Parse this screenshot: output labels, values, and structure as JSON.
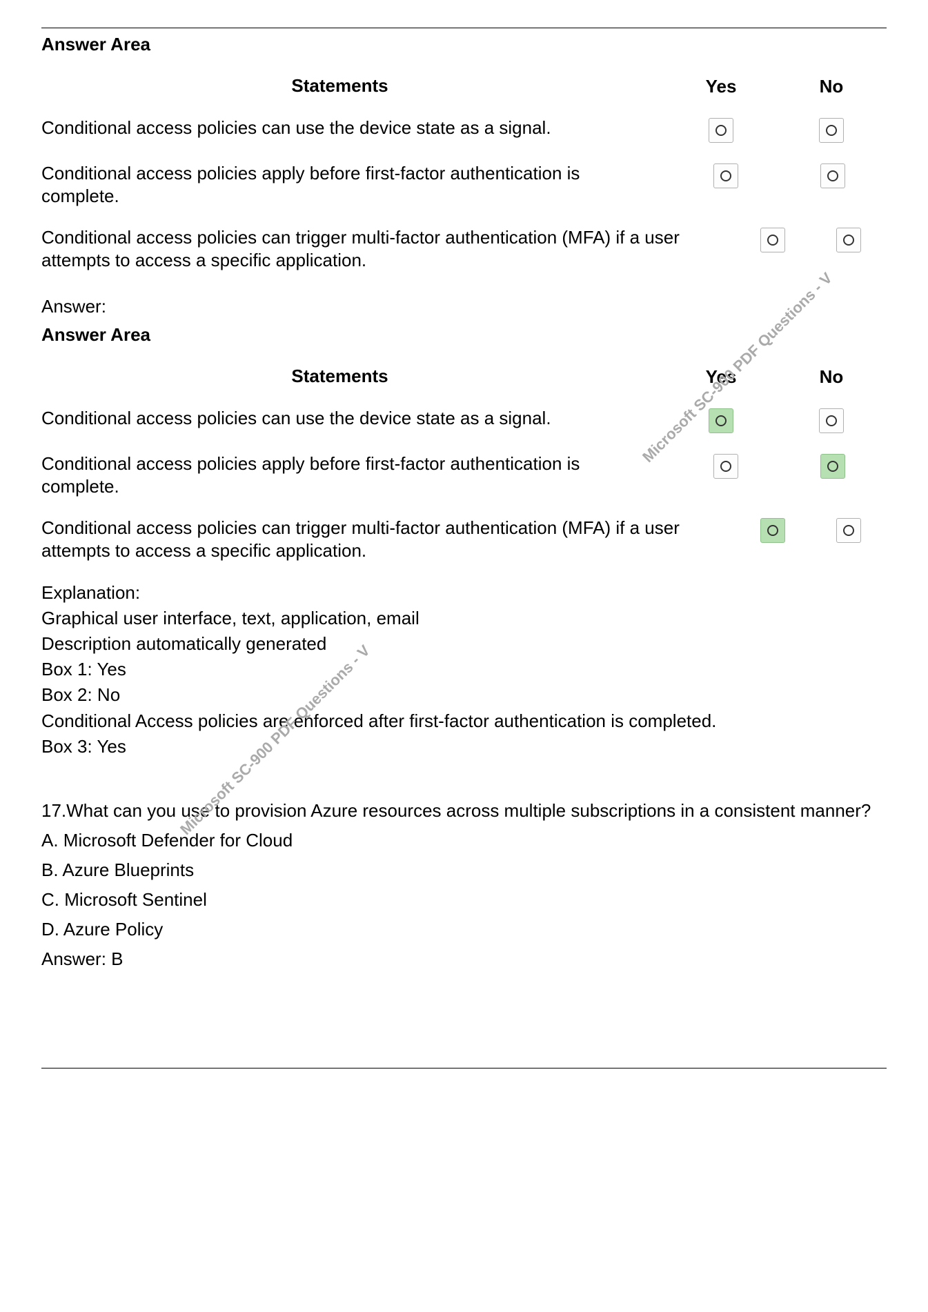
{
  "q16": {
    "answer_area_label": "Answer Area",
    "headers": {
      "statements": "Statements",
      "yes": "Yes",
      "no": "No"
    },
    "rows": [
      {
        "text": "Conditional access policies can use the device state as a signal.",
        "answer": "yes"
      },
      {
        "text": "Conditional access policies apply before first-factor authentication is complete.",
        "answer": "no"
      },
      {
        "text": "Conditional access policies can trigger multi-factor authentication (MFA) if a user attempts to access a specific application.",
        "answer": "yes"
      }
    ],
    "answer_label": "Answer:",
    "explanation_label": "Explanation:",
    "explanation_lines": [
      "Graphical user interface, text, application, email",
      "Description automatically generated",
      "Box 1: Yes",
      "Box 2: No",
      "Conditional Access policies are enforced after first-factor authentication is completed.",
      "Box 3: Yes"
    ]
  },
  "q17": {
    "question": "17.What can you use to provision Azure resources across multiple subscriptions in a consistent manner?",
    "options": [
      "A. Microsoft Defender for Cloud",
      "B. Azure Blueprints",
      "C. Microsoft Sentinel",
      "D. Azure Policy"
    ],
    "answer": "Answer: B"
  },
  "watermark": "Microsoft SC-900 PDF Questions - V",
  "colors": {
    "selected_bg": "#b7e0b2",
    "box_border": "#b0b0b0",
    "text": "#000000",
    "watermark": "#aaaaaa"
  }
}
